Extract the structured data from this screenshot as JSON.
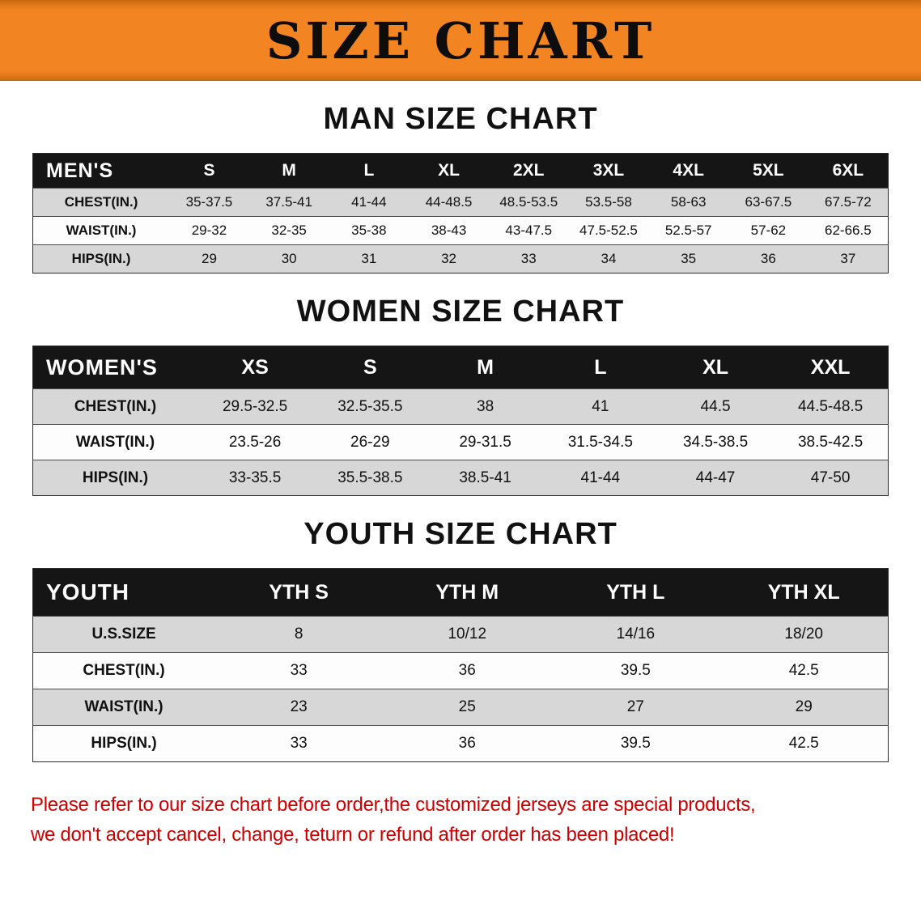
{
  "banner": {
    "title": "SIZE CHART",
    "background_color": "#f28422",
    "text_color": "#0d0d0d"
  },
  "sections": [
    {
      "heading": "MAN SIZE CHART",
      "table": {
        "header": [
          "MEN'S",
          "S",
          "M",
          "L",
          "XL",
          "2XL",
          "3XL",
          "4XL",
          "5XL",
          "6XL"
        ],
        "rows": [
          [
            "CHEST(IN.)",
            "35-37.5",
            "37.5-41",
            "41-44",
            "44-48.5",
            "48.5-53.5",
            "53.5-58",
            "58-63",
            "63-67.5",
            "67.5-72"
          ],
          [
            "WAIST(IN.)",
            "29-32",
            "32-35",
            "35-38",
            "38-43",
            "43-47.5",
            "47.5-52.5",
            "52.5-57",
            "57-62",
            "62-66.5"
          ],
          [
            "HIPS(IN.)",
            "29",
            "30",
            "31",
            "32",
            "33",
            "34",
            "35",
            "36",
            "37"
          ]
        ]
      }
    },
    {
      "heading": "WOMEN SIZE CHART",
      "table": {
        "header": [
          "WOMEN'S",
          "XS",
          "S",
          "M",
          "L",
          "XL",
          "XXL"
        ],
        "rows": [
          [
            "CHEST(IN.)",
            "29.5-32.5",
            "32.5-35.5",
            "38",
            "41",
            "44.5",
            "44.5-48.5"
          ],
          [
            "WAIST(IN.)",
            "23.5-26",
            "26-29",
            "29-31.5",
            "31.5-34.5",
            "34.5-38.5",
            "38.5-42.5"
          ],
          [
            "HIPS(IN.)",
            "33-35.5",
            "35.5-38.5",
            "38.5-41",
            "41-44",
            "44-47",
            "47-50"
          ]
        ]
      }
    },
    {
      "heading": "YOUTH SIZE CHART",
      "table": {
        "header": [
          "YOUTH",
          "YTH S",
          "YTH M",
          "YTH L",
          "YTH XL"
        ],
        "rows": [
          [
            "U.S.SIZE",
            "8",
            "10/12",
            "14/16",
            "18/20"
          ],
          [
            "CHEST(IN.)",
            "33",
            "36",
            "39.5",
            "42.5"
          ],
          [
            "WAIST(IN.)",
            "23",
            "25",
            "27",
            "29"
          ],
          [
            "HIPS(IN.)",
            "33",
            "36",
            "39.5",
            "42.5"
          ]
        ]
      }
    }
  ],
  "disclaimer": {
    "lines": [
      "Please refer to our size chart before order,the customized jerseys are special products,",
      "we don't accept cancel, change, teturn or refund after order has been placed!"
    ],
    "color": "#cc0000"
  },
  "colors": {
    "table_header_bg": "#151515",
    "table_header_text": "#ffffff",
    "row_shade": "#d7d7d7",
    "banner_orange": "#f28422"
  }
}
